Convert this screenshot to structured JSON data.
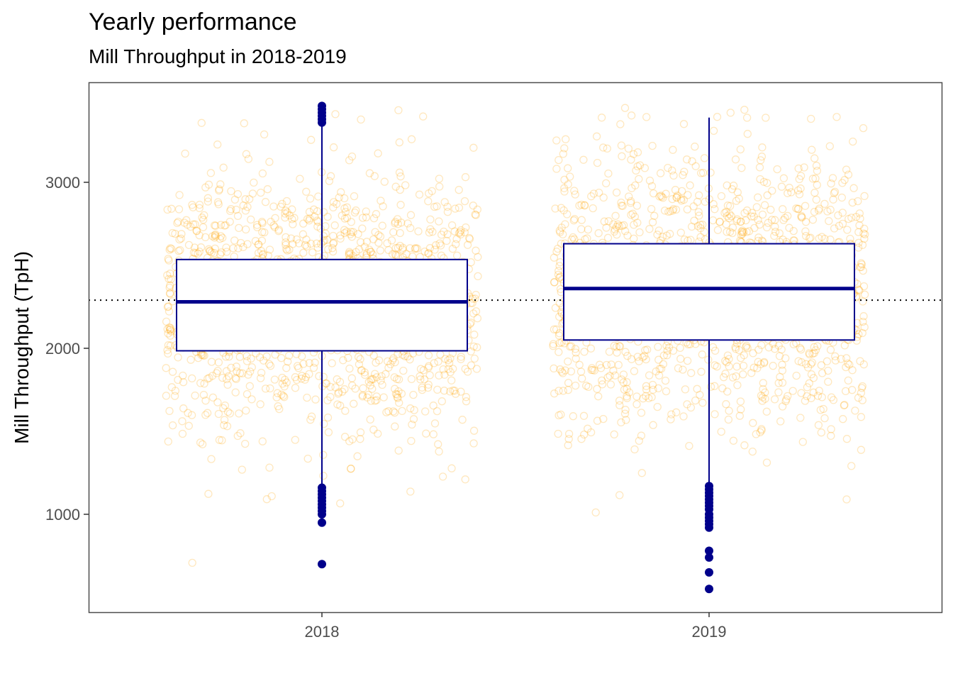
{
  "chart_data": {
    "type": "box",
    "title": "Yearly performance",
    "subtitle": "Mill Throughput in 2018-2019",
    "xlabel": "",
    "ylabel": "Mill Throughput (TpH)",
    "categories": [
      "2018",
      "2019"
    ],
    "y_ticks": [
      1000,
      2000,
      3000
    ],
    "ylim": [
      400,
      3600
    ],
    "grid": false,
    "reference_line": {
      "y": 2290,
      "style": "dotted",
      "color": "#000000"
    },
    "boxes": [
      {
        "category": "2018",
        "q1": 1985,
        "median": 2280,
        "q3": 2535,
        "whisker_low": 1170,
        "whisker_high": 3345,
        "outliers": [
          3460,
          3440,
          3420,
          3400,
          3380,
          3360,
          1160,
          1140,
          1120,
          1100,
          1080,
          1060,
          1040,
          1020,
          1000,
          950,
          700
        ]
      },
      {
        "category": "2019",
        "q1": 2050,
        "median": 2360,
        "q3": 2630,
        "whisker_low": 1190,
        "whisker_high": 3390,
        "outliers": [
          1170,
          1150,
          1130,
          1110,
          1090,
          1070,
          1050,
          1030,
          1000,
          980,
          960,
          940,
          920,
          780,
          740,
          650,
          550
        ]
      }
    ],
    "jitter": {
      "color": "#FFA500",
      "approx_points_per_category": 1400,
      "y_range": [
        540,
        3460
      ]
    },
    "colors": {
      "box": "#00008B",
      "box_fill": "#FFFFFF",
      "points": "#FFA500",
      "panel_border": "#4d4d4d"
    }
  }
}
